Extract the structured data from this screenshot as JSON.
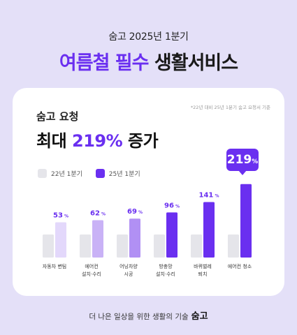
{
  "header": {
    "subtitle": "숨고 2025년 1분기",
    "headline_accent": "여름철 필수",
    "headline_rest": " 생활서비스"
  },
  "card": {
    "note": "*22년 대비 25년 1분기 숨고 요청서 기준",
    "title": "숨고 요청",
    "stat_prefix": "최대 ",
    "stat_value": "219%",
    "stat_suffix": " 증가"
  },
  "colors": {
    "accent": "#6a2ff0",
    "bar_2022": "#e5e5ea",
    "bar_2025_light": "#e3d8fb",
    "bar_2025_dark": "#6a2ff0",
    "background": "#e4e0f8"
  },
  "chart_data": {
    "type": "bar",
    "series": [
      {
        "name": "22년 1분기",
        "values": [
          1,
          1,
          1,
          1,
          1,
          1
        ]
      },
      {
        "name": "25년 1분기",
        "values": [
          1.53,
          1.62,
          1.69,
          1.96,
          2.41,
          3.19
        ]
      }
    ],
    "categories": [
      [
        "자동차 변팀"
      ],
      [
        "에어컨",
        "설치·수리"
      ],
      [
        "어닝차양",
        "시공"
      ],
      [
        "방충망",
        "설치·수리"
      ],
      [
        "바퀴벌레",
        "퇴치"
      ],
      [
        "에어컨 청소"
      ]
    ],
    "increase_labels": [
      "53",
      "62",
      "69",
      "96",
      "141",
      "219"
    ],
    "percent_unit": "%",
    "legend_placement": "top-left",
    "grid": false
  },
  "callout": {
    "value": "219",
    "unit": "%"
  },
  "footer": {
    "text": "더 나은 일상을 위한 생활의 기술",
    "logo": "숨고"
  }
}
